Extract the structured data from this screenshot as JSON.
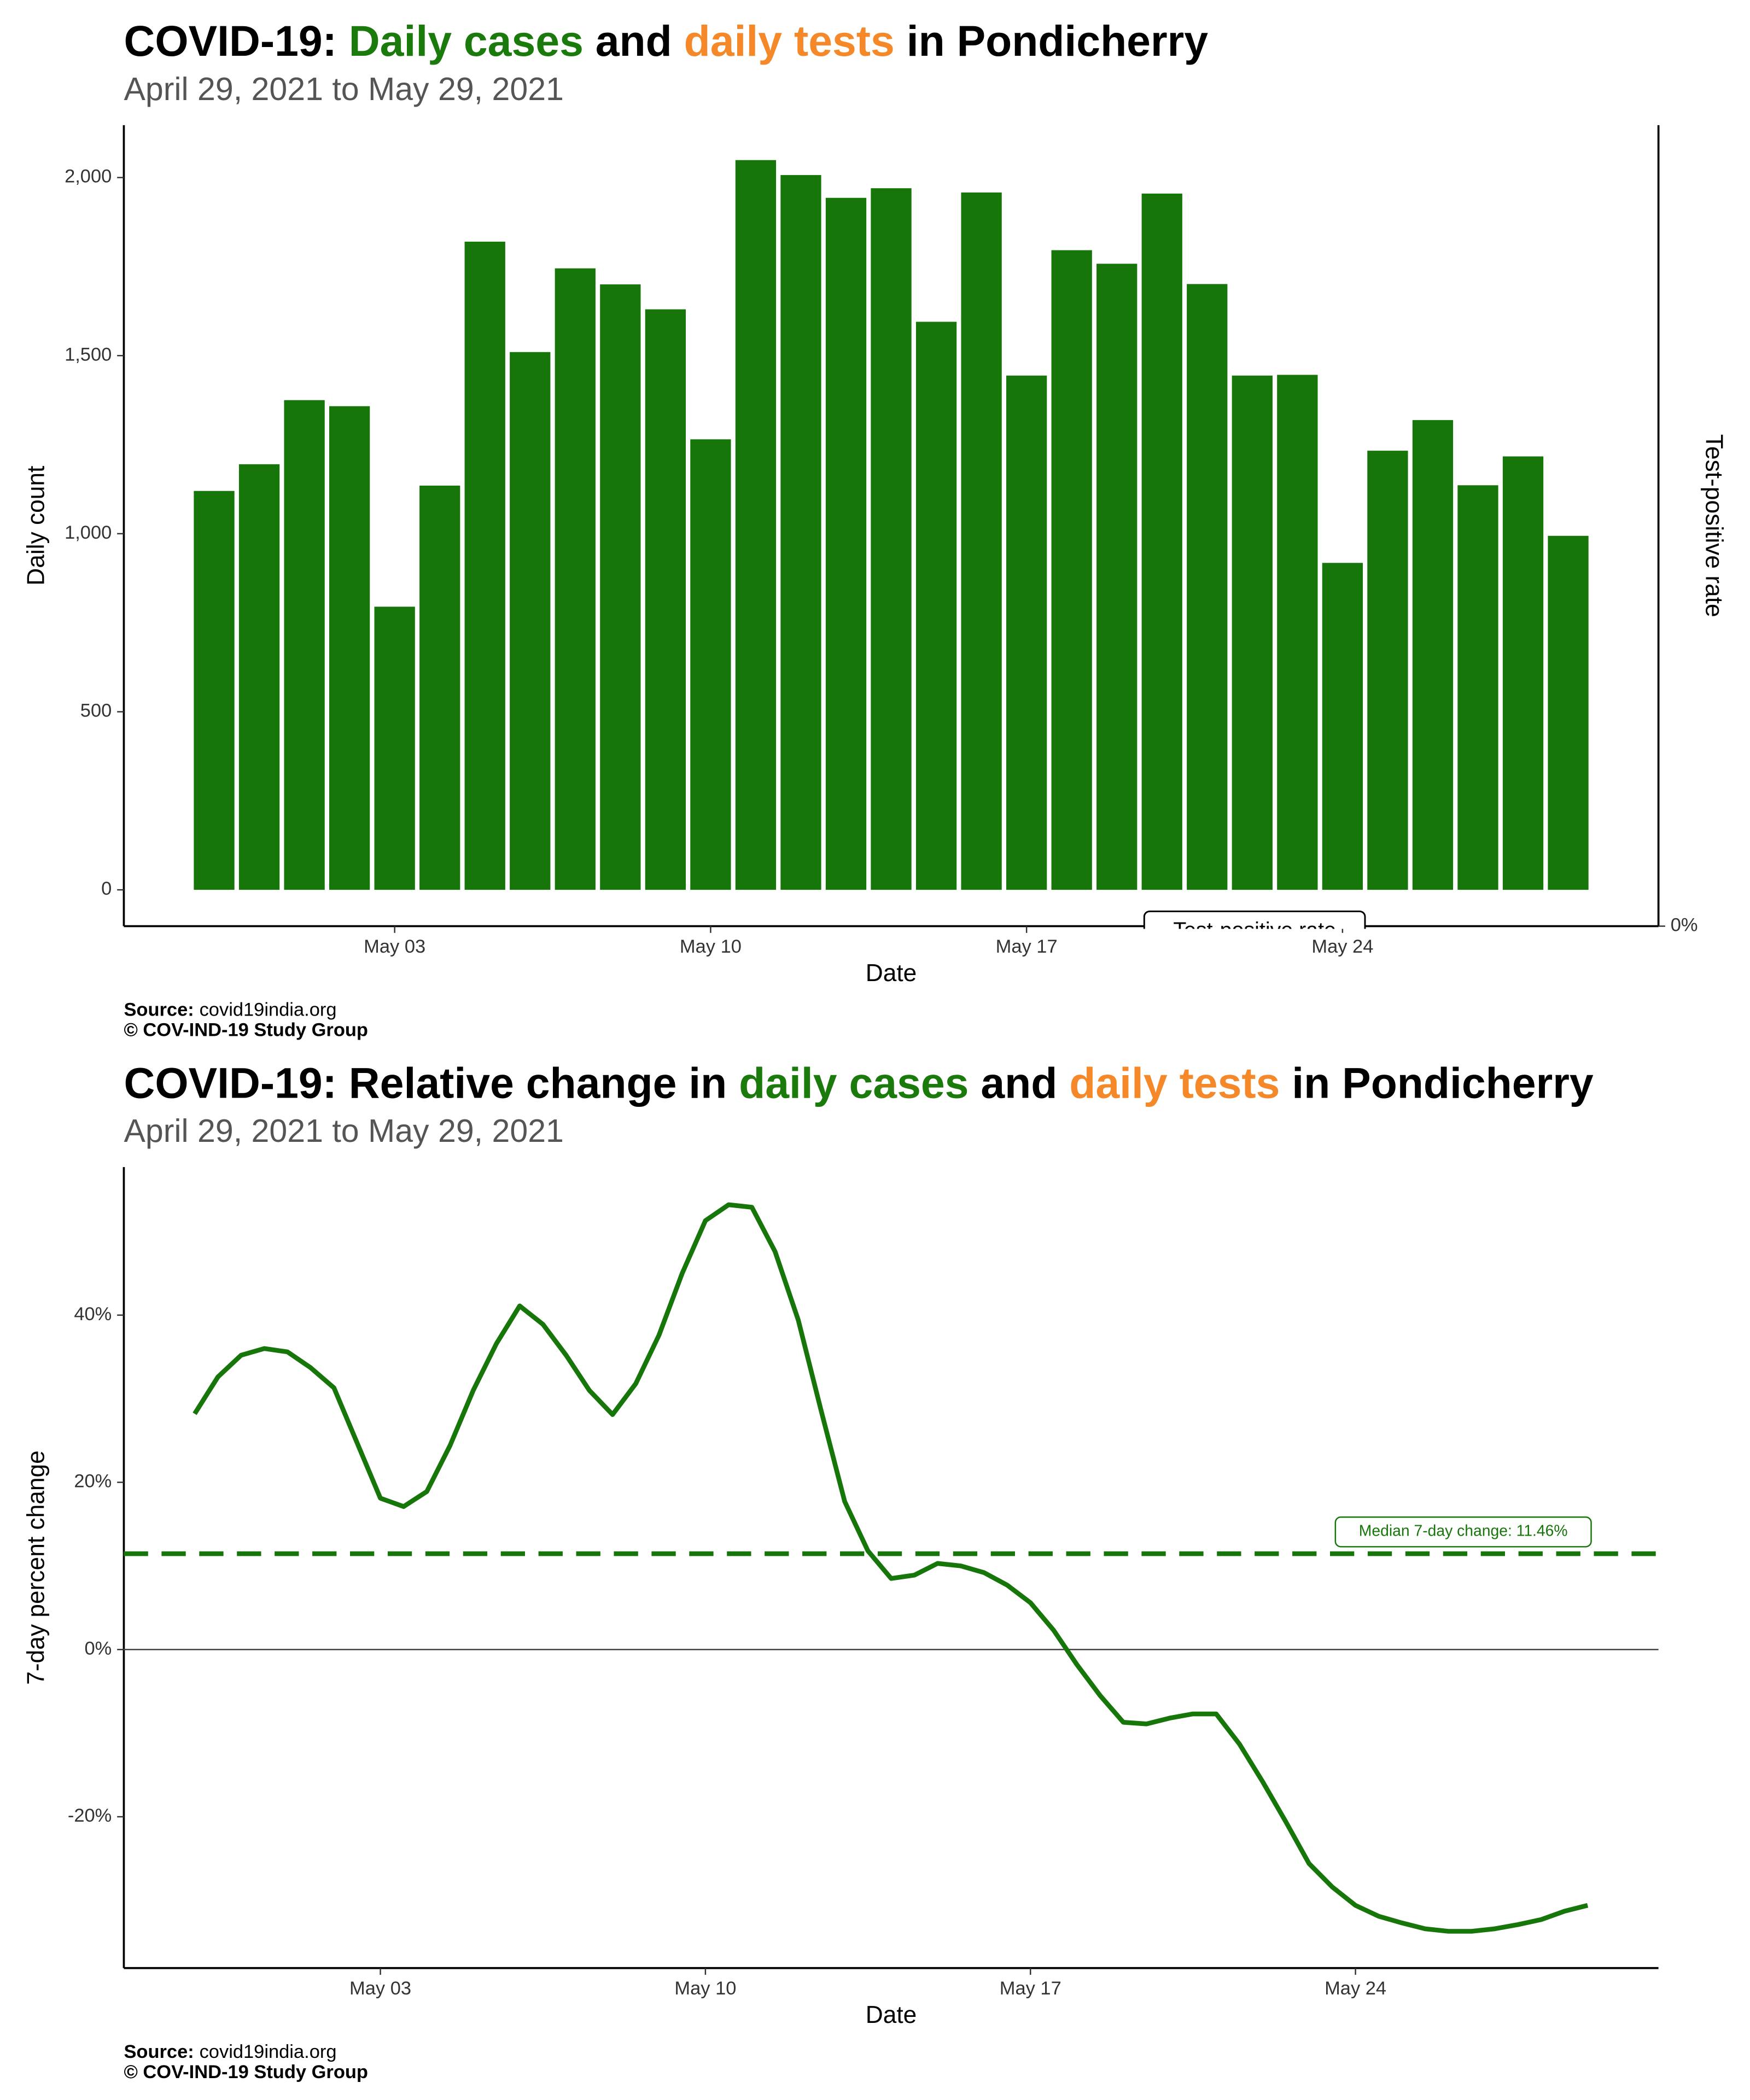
{
  "chart_data": [
    {
      "type": "bar",
      "title_parts": [
        {
          "text": "COVID-19: ",
          "color": "#000000"
        },
        {
          "text": "Daily cases",
          "color": "#1a7a0c"
        },
        {
          "text": " and ",
          "color": "#000000"
        },
        {
          "text": "daily tests",
          "color": "#f5892a"
        },
        {
          "text": " in Pondicherry",
          "color": "#000000"
        }
      ],
      "subtitle": "April 29, 2021 to May 29, 2021",
      "x_label": "Date",
      "y_label": "Daily count",
      "y2_label": "Test-positive rate",
      "categories": [
        null,
        null,
        null,
        null,
        "May 03",
        null,
        null,
        null,
        null,
        null,
        null,
        "May 10",
        null,
        null,
        null,
        null,
        null,
        null,
        "May 17",
        null,
        null,
        null,
        null,
        null,
        null,
        "May 24",
        null,
        null,
        null,
        null,
        null
      ],
      "values": [
        1120,
        1195,
        1375,
        1358,
        795,
        1135,
        1820,
        1510,
        1745,
        1700,
        1630,
        1265,
        2049,
        2007,
        1943,
        1970,
        1595,
        1958,
        1444,
        1796,
        1758,
        1955,
        1701,
        1444,
        1446,
        918,
        1233,
        1319,
        1136,
        1217,
        994
      ],
      "color": "#167609",
      "ylim": [
        -102,
        2147
      ],
      "yticks": [
        0,
        500,
        {
          "value": 1000,
          "label": "1,000"
        },
        {
          "value": 1500,
          "label": "1,500"
        },
        {
          "value": 2000,
          "label": "2,000"
        }
      ],
      "y2lim": [
        0,
        1
      ],
      "y2ticks": [
        {
          "value": 0,
          "label": "0%"
        }
      ],
      "annotation": "Test-positive rate",
      "source_label": "Source:",
      "source": "covid19india.org",
      "credit": "© COV-IND-19 Study Group"
    },
    {
      "type": "line",
      "title_parts": [
        {
          "text": "COVID-19: Relative change in ",
          "color": "#000000"
        },
        {
          "text": "daily cases",
          "color": "#1a7a0c"
        },
        {
          "text": " and ",
          "color": "#000000"
        },
        {
          "text": "daily tests",
          "color": "#f5892a"
        },
        {
          "text": " in Pondicherry",
          "color": "#000000"
        }
      ],
      "subtitle": "April 29, 2021 to May 29, 2021",
      "x_label": "Date",
      "y_label": "7-day percent change",
      "categories": [
        null,
        null,
        null,
        null,
        null,
        null,
        null,
        null,
        "May 03",
        null,
        null,
        null,
        null,
        null,
        null,
        null,
        null,
        null,
        null,
        null,
        null,
        null,
        "May 10",
        null,
        null,
        null,
        null,
        null,
        null,
        null,
        null,
        null,
        null,
        null,
        null,
        null,
        "May 17",
        null,
        null,
        null,
        null,
        null,
        null,
        null,
        null,
        null,
        null,
        null,
        null,
        null,
        "May 24",
        null,
        null,
        null,
        null,
        null,
        null,
        null,
        null,
        null,
        null
      ],
      "values": [
        28.2,
        32.6,
        35.2,
        36.0,
        35.6,
        33.7,
        31.3,
        24.7,
        18.1,
        17.1,
        18.9,
        24.4,
        31.0,
        36.6,
        41.1,
        38.9,
        35.2,
        31.0,
        28.1,
        31.8,
        37.6,
        45.0,
        51.3,
        53.2,
        52.9,
        47.6,
        39.4,
        28.4,
        17.7,
        11.8,
        8.5,
        8.9,
        10.3,
        10.0,
        9.2,
        7.7,
        5.6,
        2.3,
        -1.8,
        -5.5,
        -8.7,
        -8.9,
        -8.2,
        -7.7,
        -7.7,
        -11.3,
        -15.8,
        -20.6,
        -25.6,
        -28.4,
        -30.6,
        -31.9,
        -32.7,
        -33.4,
        -33.7,
        -33.7,
        -33.4,
        -32.9,
        -32.3,
        -31.3,
        -30.6
      ],
      "color": "#167609",
      "median": 11.46,
      "median_label": "Median 7-day change: 11.46%",
      "ylim": [
        -38.1,
        57.7
      ],
      "yticks": [
        {
          "value": -20,
          "label": "-20%"
        },
        {
          "value": 0,
          "label": "0%"
        },
        {
          "value": 20,
          "label": "20%"
        },
        {
          "value": 40,
          "label": "40%"
        }
      ],
      "source_label": "Source:",
      "source": "covid19india.org",
      "credit": "© COV-IND-19 Study Group"
    }
  ]
}
